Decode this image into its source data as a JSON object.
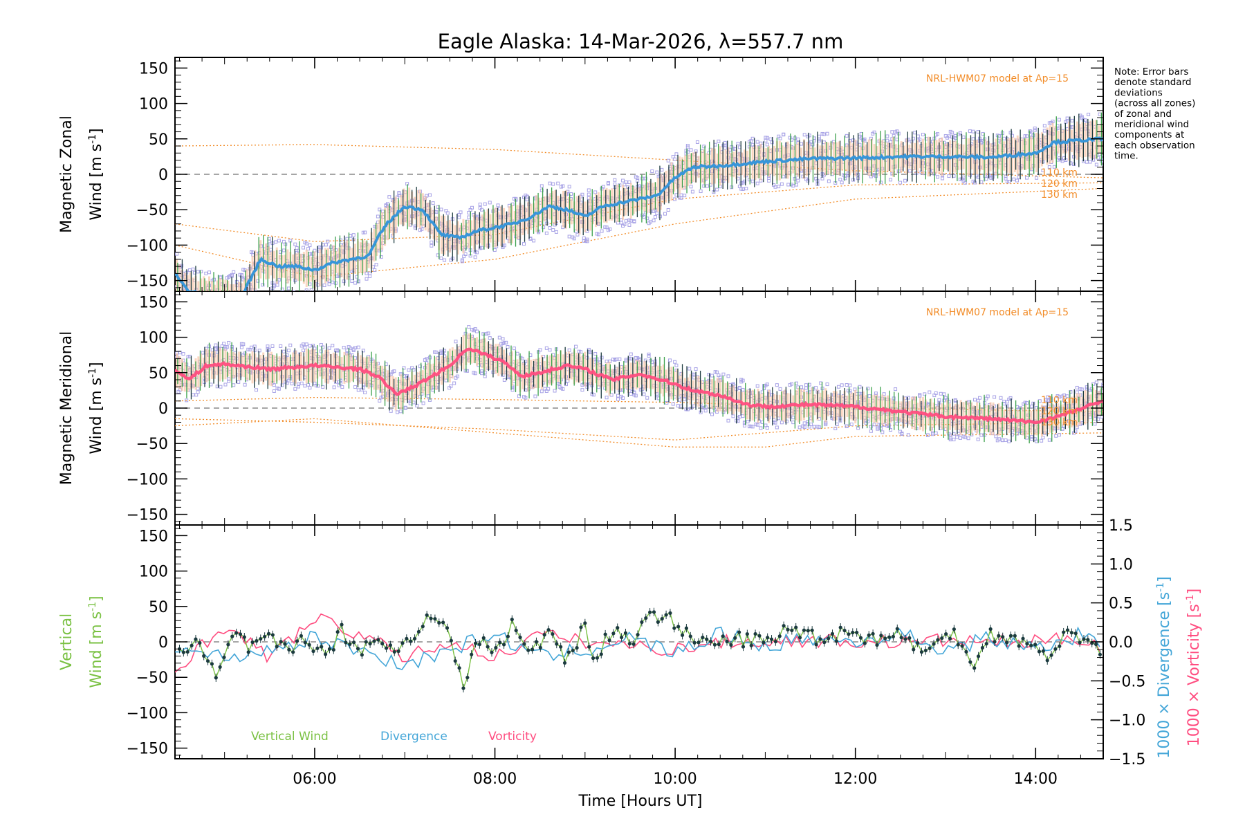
{
  "title": "Eagle Alaska: 14-Mar-2026, λ=557.7 nm",
  "note_lines": [
    "Note: Error bars",
    "denote standard",
    "deviations",
    "(across all zones)",
    "of zonal and",
    "meridional wind",
    "components at",
    "each observation",
    "time."
  ],
  "model_label": "NRL-HWM07 model at Ap=15",
  "height_labels": [
    "110 km",
    "120 km",
    "130 km"
  ],
  "x_axis": {
    "title": "Time [Hours UT]",
    "range_hours": [
      4.45,
      14.75
    ],
    "ticks": [
      "06:00",
      "08:00",
      "10:00",
      "12:00",
      "14:00"
    ],
    "tick_values": [
      6,
      8,
      10,
      12,
      14
    ]
  },
  "colors": {
    "zonal": "#3a9ad9",
    "zonal_dark": "#1f3fd8",
    "meridional": "#ff4d80",
    "vertical": "#7ac143",
    "divergence": "#44a6d8",
    "vorticity": "#ff4d80",
    "model": "#f28c28",
    "scatter": "#a8a3e6",
    "errbar_dark": "#1b3a3e",
    "errbar_green": "#3aa04a",
    "peach": "#f8c6a8"
  },
  "panels": {
    "zonal": {
      "ylabel_line1": "Magnetic Zonal",
      "ylabel_line2": "Wind",
      "ylabel_units": "[m s",
      "ylabel_exp": "-1",
      "ylabel_close": "]",
      "yticks": [
        "150",
        "100",
        "50",
        "0",
        "−50",
        "−100",
        "−150"
      ]
    },
    "meridional": {
      "ylabel_line1": "Magnetic Meridional",
      "ylabel_line2": "Wind",
      "ylabel_units": "[m s",
      "ylabel_exp": "-1",
      "ylabel_close": "]",
      "yticks": [
        "150",
        "100",
        "50",
        "0",
        "−50",
        "−100",
        "−150"
      ]
    },
    "vertical": {
      "ylabel_line1": "Vertical",
      "ylabel_line2": "Wind",
      "ylabel_units": "[m s",
      "ylabel_exp": "-1",
      "ylabel_close": "]",
      "yticks": [
        "150",
        "100",
        "50",
        "0",
        "−50",
        "−100",
        "−150"
      ],
      "right_yticks": [
        "1.5",
        "1.0",
        "0.5",
        "0.0",
        "−0.5",
        "−1.0",
        "−1.5"
      ],
      "right_label_div": "1000 × Divergence",
      "right_label_vort": "1000 × Vorticity",
      "right_units": "[s",
      "right_exp": "-1",
      "right_close": "]",
      "legend": [
        "Vertical Wind",
        "Divergence",
        "Vorticity"
      ]
    }
  },
  "chart_data": [
    {
      "type": "line",
      "title": "Eagle Alaska: 14-Mar-2026, λ=557.7 nm",
      "panel": "zonal",
      "ylabel": "Magnetic Zonal Wind [m s-1]",
      "xlabel": "Time [Hours UT]",
      "ylim": [
        -165,
        165
      ],
      "series": [
        {
          "name": "Zonal wind (mean)",
          "x": [
            4.45,
            4.6,
            4.8,
            5.0,
            5.2,
            5.4,
            5.6,
            5.8,
            6.0,
            6.2,
            6.4,
            6.6,
            6.7,
            6.8,
            7.0,
            7.2,
            7.4,
            7.6,
            7.8,
            8.0,
            8.2,
            8.4,
            8.6,
            8.8,
            9.0,
            9.2,
            9.4,
            9.6,
            9.8,
            10.0,
            10.2,
            10.5,
            11.0,
            11.5,
            12.0,
            12.5,
            13.0,
            13.5,
            14.0,
            14.2,
            14.5,
            14.75
          ],
          "values": [
            -140,
            -165,
            -170,
            -175,
            -170,
            -120,
            -130,
            -130,
            -135,
            -125,
            -120,
            -115,
            -90,
            -70,
            -45,
            -50,
            -85,
            -90,
            -80,
            -75,
            -70,
            -60,
            -45,
            -50,
            -60,
            -45,
            -40,
            -35,
            -30,
            -5,
            10,
            12,
            18,
            22,
            23,
            25,
            25,
            24,
            30,
            45,
            48,
            50
          ]
        },
        {
          "name": "NRL-HWM07 110 km",
          "x": [
            4.45,
            6,
            8,
            10,
            12,
            14.75
          ],
          "values": [
            40,
            42,
            35,
            20,
            5,
            -5
          ]
        },
        {
          "name": "NRL-HWM07 120 km",
          "x": [
            4.45,
            6,
            8,
            10,
            12,
            14.75
          ],
          "values": [
            -70,
            -95,
            -85,
            -35,
            -15,
            -12
          ]
        },
        {
          "name": "NRL-HWM07 130 km",
          "x": [
            4.45,
            6,
            8,
            10,
            12,
            14.75
          ],
          "values": [
            -100,
            -145,
            -120,
            -70,
            -35,
            -20
          ]
        }
      ]
    },
    {
      "type": "line",
      "panel": "meridional",
      "ylabel": "Magnetic Meridional Wind [m s-1]",
      "xlabel": "Time [Hours UT]",
      "ylim": [
        -165,
        165
      ],
      "series": [
        {
          "name": "Meridional wind (mean)",
          "x": [
            4.45,
            4.6,
            4.8,
            5.0,
            5.5,
            6.0,
            6.5,
            6.7,
            6.9,
            7.1,
            7.3,
            7.5,
            7.7,
            7.9,
            8.1,
            8.3,
            8.5,
            8.8,
            9.0,
            9.3,
            9.6,
            9.9,
            10.2,
            10.5,
            10.8,
            11.0,
            11.5,
            12.0,
            12.5,
            13.0,
            13.5,
            14.0,
            14.3,
            14.75
          ],
          "values": [
            55,
            40,
            60,
            62,
            55,
            60,
            55,
            45,
            20,
            30,
            45,
            60,
            85,
            75,
            65,
            45,
            50,
            60,
            55,
            40,
            48,
            38,
            25,
            18,
            5,
            2,
            5,
            2,
            -5,
            -12,
            -15,
            -20,
            -10,
            10
          ]
        },
        {
          "name": "NRL-HWM07 110 km",
          "x": [
            4.45,
            6,
            8,
            10,
            12,
            14.75
          ],
          "values": [
            10,
            15,
            12,
            8,
            0,
            -5
          ]
        },
        {
          "name": "NRL-HWM07 120 km",
          "x": [
            4.45,
            6,
            8,
            10,
            12,
            14.75
          ],
          "values": [
            -15,
            -20,
            -30,
            -45,
            -25,
            -20
          ]
        },
        {
          "name": "NRL-HWM07 130 km",
          "x": [
            4.45,
            6,
            8,
            10,
            11,
            12,
            14.75
          ],
          "values": [
            -25,
            -15,
            -35,
            -55,
            -55,
            -40,
            -35
          ]
        }
      ]
    },
    {
      "type": "line",
      "panel": "vertical",
      "ylabel": "Vertical Wind [m s-1]",
      "y2label": "1000 × Divergence / Vorticity [s-1]",
      "xlabel": "Time [Hours UT]",
      "ylim": [
        -165,
        165
      ],
      "y2lim": [
        -1.5,
        1.5
      ],
      "series": [
        {
          "name": "Vertical Wind",
          "x": [
            4.5,
            4.7,
            4.9,
            5.1,
            5.3,
            5.5,
            5.7,
            5.9,
            6.1,
            6.3,
            6.5,
            6.7,
            6.9,
            7.1,
            7.3,
            7.5,
            7.65,
            7.8,
            8.0,
            8.2,
            8.4,
            8.6,
            8.8,
            9.0,
            9.1,
            9.3,
            9.5,
            9.7,
            9.9,
            10.1,
            10.4,
            10.7,
            11.0,
            11.3,
            11.6,
            11.9,
            12.2,
            12.5,
            12.8,
            13.1,
            13.3,
            13.5,
            13.8,
            14.1,
            14.4,
            14.7
          ],
          "values": [
            -20,
            15,
            -55,
            10,
            -10,
            5,
            -15,
            10,
            -20,
            15,
            -10,
            5,
            -15,
            10,
            45,
            5,
            -65,
            5,
            -15,
            25,
            -20,
            20,
            -25,
            25,
            -30,
            20,
            0,
            30,
            45,
            10,
            -5,
            5,
            0,
            20,
            5,
            15,
            5,
            10,
            -15,
            15,
            -30,
            10,
            5,
            -20,
            15,
            -10
          ]
        },
        {
          "name": "Divergence",
          "axis": "right",
          "x": [
            4.5,
            5.0,
            5.5,
            6.0,
            6.5,
            7.0,
            7.5,
            8.0,
            8.5,
            9.0,
            9.5,
            10.0,
            10.5,
            11.0,
            11.5,
            12.0,
            12.5,
            13.0,
            13.5,
            14.0,
            14.5,
            14.75
          ],
          "values": [
            -0.1,
            -0.2,
            -0.1,
            0.05,
            -0.1,
            -0.3,
            -0.1,
            0.1,
            -0.2,
            -0.1,
            0.05,
            -0.15,
            0.1,
            -0.05,
            0.05,
            0.0,
            0.1,
            -0.1,
            0.05,
            -0.1,
            0.1,
            -0.1
          ]
        },
        {
          "name": "Vorticity",
          "axis": "right",
          "x": [
            4.5,
            5.0,
            5.5,
            6.0,
            6.5,
            7.0,
            7.5,
            8.0,
            8.5,
            9.0,
            9.5,
            10.0,
            10.5,
            11.0,
            11.5,
            12.0,
            12.5,
            13.0,
            13.5,
            14.0,
            14.5,
            14.75
          ],
          "values": [
            -0.3,
            0.2,
            -0.2,
            0.3,
            0.1,
            -0.2,
            0.0,
            -0.2,
            0.1,
            0.0,
            -0.05,
            -0.1,
            0.0,
            0.0,
            0.02,
            0.0,
            0.0,
            0.02,
            0.0,
            0.0,
            0.05,
            -0.05
          ]
        }
      ]
    }
  ]
}
